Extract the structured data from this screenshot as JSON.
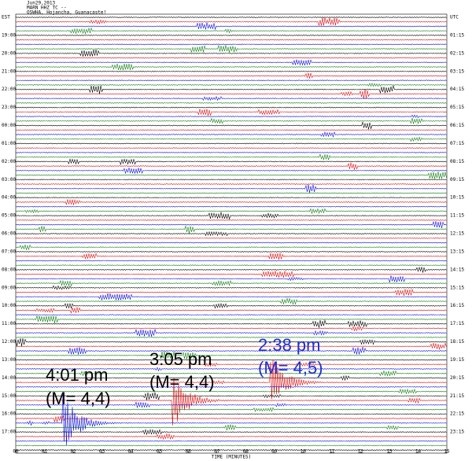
{
  "header": {
    "lines": [
      "Jun29,2013",
      "MARN HHZ TC --",
      "OSWHA, Hojancha, Guanacaste!"
    ],
    "left_zone": "EST",
    "right_zone": "UTC"
  },
  "left_labels": [
    "19:00",
    "20:00",
    "21:00",
    "22:00",
    "23:00",
    "00:00",
    "01:00",
    "02:00",
    "03:00",
    "04:00",
    "05:00",
    "06:00",
    "07:00",
    "08:00",
    "09:00",
    "10:00",
    "11:00",
    "12:00",
    "13:00",
    "14:00",
    "15:00",
    "16:00",
    "17:00"
  ],
  "right_labels": [
    "01:15",
    "02:15",
    "03:15",
    "04:15",
    "05:15",
    "06:15",
    "07:15",
    "08:15",
    "09:15",
    "10:15",
    "11:15",
    "12:15",
    "13:15",
    "14:15",
    "15:15",
    "16:15",
    "17:15",
    "18:15",
    "19:15",
    "20:15",
    "21:15",
    "22:15",
    "23:15"
  ],
  "x_labels": [
    "00",
    "01",
    "02",
    "03",
    "04",
    "05",
    "06",
    "07",
    "08",
    "09",
    "10",
    "11",
    "12",
    "13",
    "14",
    "15"
  ],
  "x_title": "TIME (MINUTES)",
  "annotations": [
    {
      "time": "4:01 pm",
      "magnitude": "(M= 4,4)"
    },
    {
      "time": "3:05 pm",
      "magnitude": "(M= 4,4)"
    },
    {
      "time": "2:38 pm",
      "magnitude": "(M= 4,5)"
    }
  ]
}
